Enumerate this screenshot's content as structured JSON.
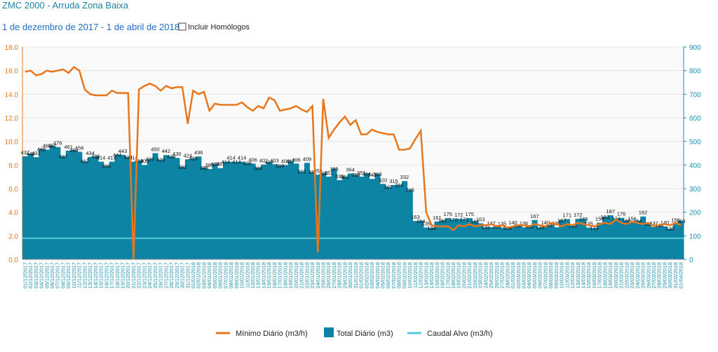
{
  "header": {
    "title": "ZMC 2000 - Arruda Zona Baixa",
    "subtitle": "1 de dezembro de 2017 - 1 de abril de 2018",
    "checkbox": "Incluir Homólogos"
  },
  "chart_data": {
    "type": "bar-line",
    "grid": true,
    "categories": [
      "01/12/2017",
      "02/12/2017",
      "03/12/2017",
      "04/12/2017",
      "05/12/2017",
      "06/12/2017",
      "07/12/2017",
      "08/12/2017",
      "09/12/2017",
      "10/12/2017",
      "11/12/2017",
      "12/12/2017",
      "13/12/2017",
      "14/12/2017",
      "15/12/2017",
      "16/12/2017",
      "17/12/2017",
      "18/12/2017",
      "19/12/2017",
      "20/12/2017",
      "21/12/2017",
      "22/12/2017",
      "23/12/2017",
      "24/12/2017",
      "25/12/2017",
      "26/12/2017",
      "27/12/2017",
      "28/12/2017",
      "29/12/2017",
      "30/12/2017",
      "31/12/2017",
      "01/01/2018",
      "02/01/2018",
      "03/01/2018",
      "04/01/2018",
      "05/01/2018",
      "06/01/2018",
      "07/01/2018",
      "08/01/2018",
      "09/01/2018",
      "10/01/2018",
      "11/01/2018",
      "12/01/2018",
      "13/01/2018",
      "14/01/2018",
      "15/01/2018",
      "16/01/2018",
      "17/01/2018",
      "18/01/2018",
      "19/01/2018",
      "20/01/2018",
      "21/01/2018",
      "22/01/2018",
      "23/01/2018",
      "24/01/2018",
      "25/01/2018",
      "26/01/2018",
      "27/01/2018",
      "28/01/2018",
      "29/01/2018",
      "30/01/2018",
      "31/01/2018",
      "01/02/2018",
      "02/02/2018",
      "03/02/2018",
      "04/02/2018",
      "05/02/2018",
      "06/02/2018",
      "07/02/2018",
      "08/02/2018",
      "09/02/2018",
      "10/02/2018",
      "11/02/2018",
      "12/02/2018",
      "13/02/2018",
      "14/02/2018",
      "15/02/2018",
      "16/02/2018",
      "17/02/2018",
      "18/02/2018",
      "19/02/2018",
      "20/02/2018",
      "21/02/2018",
      "22/02/2018",
      "23/02/2018",
      "24/02/2018",
      "25/02/2018",
      "26/02/2018",
      "27/02/2018",
      "28/02/2018",
      "01/03/2018",
      "02/03/2018",
      "03/03/2018",
      "04/03/2018",
      "05/03/2018",
      "06/03/2018",
      "07/03/2018",
      "08/03/2018",
      "09/03/2018",
      "10/03/2018",
      "11/03/2018",
      "12/03/2018",
      "13/03/2018",
      "14/03/2018",
      "15/03/2018",
      "16/03/2018",
      "17/03/2018",
      "18/03/2018",
      "19/03/2018",
      "20/03/2018",
      "21/03/2018",
      "22/03/2018",
      "23/03/2018",
      "24/03/2018",
      "25/03/2018",
      "26/03/2018",
      "27/03/2018",
      "28/03/2018",
      "29/03/2018",
      "30/03/2018",
      "31/03/2018",
      "01/04/2018"
    ],
    "ylim": [
      0,
      18
    ],
    "yticks": [
      {
        "value": 0,
        "label": "0.0"
      },
      {
        "value": 2,
        "label": "2.0"
      },
      {
        "value": 4,
        "label": "4.0"
      },
      {
        "value": 6,
        "label": "6.0"
      },
      {
        "value": 8,
        "label": "8.0"
      },
      {
        "value": 10,
        "label": "10.0"
      },
      {
        "value": 12,
        "label": "12.0"
      },
      {
        "value": 14,
        "label": "14.0"
      },
      {
        "value": 16,
        "label": "16.0"
      },
      {
        "value": 18,
        "label": "18.0"
      }
    ],
    "y2lim": [
      0,
      900
    ],
    "y2ticks": [
      0,
      100,
      200,
      300,
      400,
      500,
      600,
      700,
      800,
      900
    ],
    "series": [
      {
        "name": "Mínimo Diário (m3/h)",
        "type": "line",
        "color": "#e8761c",
        "values": [
          15.9,
          16.0,
          15.6,
          15.7,
          16.0,
          15.9,
          16.0,
          16.1,
          15.8,
          16.3,
          16.0,
          14.4,
          14.0,
          13.9,
          13.9,
          13.9,
          14.3,
          14.1,
          14.1,
          14.1,
          0.0,
          14.4,
          14.7,
          14.9,
          14.7,
          14.3,
          14.7,
          14.5,
          14.6,
          14.6,
          11.5,
          14.3,
          14.0,
          14.2,
          12.6,
          13.2,
          13.1,
          13.1,
          13.1,
          13.1,
          13.3,
          12.9,
          12.6,
          13.0,
          12.8,
          13.7,
          13.5,
          12.6,
          12.7,
          12.8,
          13.0,
          12.7,
          12.5,
          13.0,
          0.6,
          13.6,
          10.3,
          11.0,
          11.6,
          12.1,
          11.4,
          11.8,
          10.6,
          10.6,
          11.0,
          10.8,
          10.7,
          10.6,
          10.6,
          9.3,
          9.3,
          9.4,
          10.2,
          10.9,
          4.0,
          2.9,
          2.8,
          2.8,
          2.8,
          2.5,
          2.9,
          2.8,
          3.0,
          2.8,
          2.9,
          2.9,
          3.0,
          2.8,
          2.9,
          2.7,
          2.8,
          2.9,
          2.9,
          2.8,
          3.0,
          2.9,
          2.8,
          3.1,
          3.0,
          2.8,
          3.0,
          2.9,
          3.1,
          3.0,
          2.9,
          2.8,
          3.0,
          3.1,
          3.0,
          3.4,
          3.1,
          3.0,
          3.2,
          3.1,
          3.0,
          3.1,
          2.8,
          2.9,
          3.0,
          2.9,
          3.1,
          2.9
        ]
      },
      {
        "name": "Total Diário (m3)",
        "type": "bar",
        "axis": "y2",
        "color": "#0e84a5",
        "values": [
          437,
          448,
          433,
          468,
          465,
          482,
          476,
          437,
          461,
          464,
          456,
          417,
          434,
          438,
          414,
          396,
          414,
          444,
          443,
          434,
          414,
          419,
          400,
          426,
          450,
          423,
          442,
          436,
          430,
          392,
          424,
          429,
          436,
          389,
          383,
          405,
          387,
          414,
          414,
          414,
          414,
          408,
          406,
          388,
          402,
          413,
          403,
          398,
          400,
          417,
          406,
          373,
          409,
          371,
          359,
          365,
          351,
          385,
          336,
          351,
          364,
          359,
          351,
          364,
          341,
          363,
          320,
          307,
          315,
          316,
          332,
          295,
          163,
          164,
          135,
          134,
          161,
          165,
          175,
          170,
          172,
          171,
          175,
          162,
          153,
          136,
          137,
          139,
          135,
          134,
          140,
          144,
          136,
          139,
          167,
          136,
          140,
          145,
          136,
          167,
          171,
          143,
          172,
          173,
          135,
          133,
          156,
          181,
          187,
          174,
          176,
          165,
          156,
          164,
          182,
          151,
          137,
          145,
          140,
          130,
          150,
          163
        ]
      },
      {
        "name": "Caudal Alvo (m3/h)",
        "type": "hline",
        "color": "#5bc8de",
        "value": 1.8
      }
    ]
  }
}
